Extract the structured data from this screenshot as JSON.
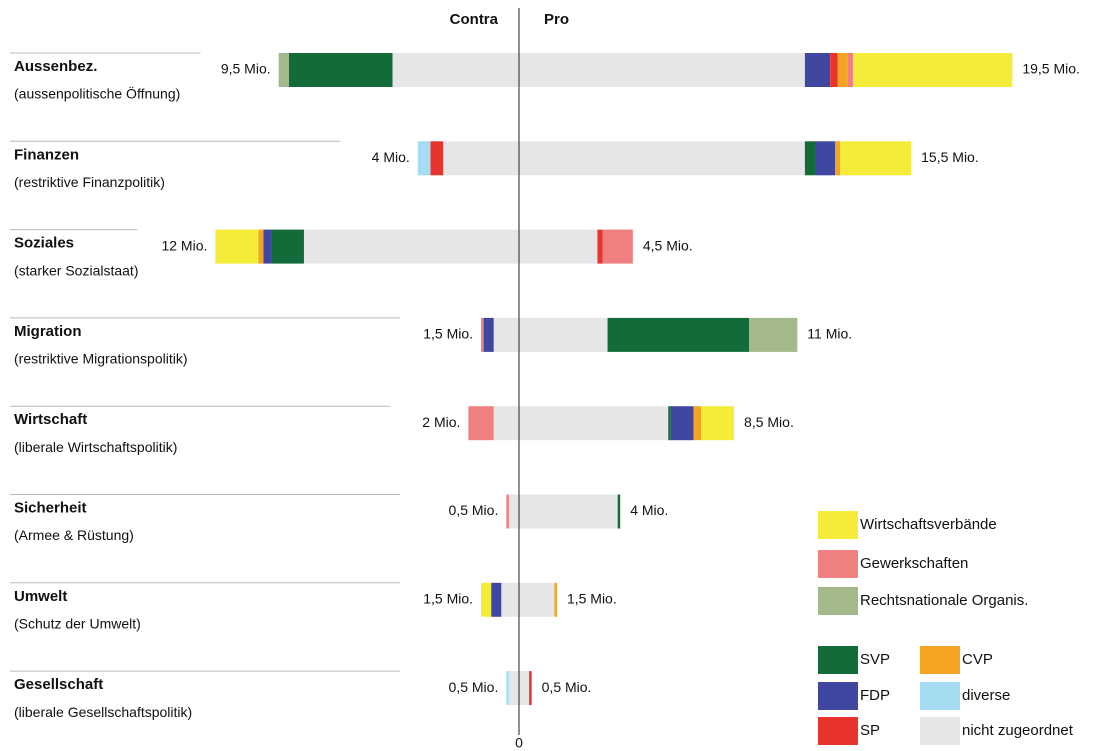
{
  "chart_data": {
    "type": "diverging-bar",
    "header_left": "Contra",
    "header_right": "Pro",
    "categories": [
      "Aussenbez.",
      "Finanzen",
      "Soziales",
      "Migration",
      "Wirtschaft",
      "Sicherheit",
      "Umwelt",
      "Gesellschaft"
    ],
    "subtitles": [
      "(aussenpolitische Öffnung)",
      "(restriktive Finanzpolitik)",
      "(starker Sozialstaat)",
      "(restriktive Migrationspolitik)",
      "(liberale Wirtschaftspolitik)",
      "(Armee & Rüstung)",
      "(Schutz der Umwelt)",
      "(liberale Gesellschaftspolitik)"
    ],
    "series": [
      {
        "name": "nicht zugeordnet",
        "color": "#e6e6e6",
        "contra": [
          5.0,
          3.0,
          8.5,
          1.0,
          1.0,
          0.4,
          0.7,
          0.4
        ],
        "pro": [
          11.3,
          11.3,
          3.1,
          3.5,
          5.9,
          3.9,
          1.4,
          0.4
        ]
      },
      {
        "name": "SVP",
        "color": "#146b3a",
        "contra": [
          4.1,
          0,
          1.3,
          0,
          0,
          0,
          0,
          0
        ],
        "pro": [
          0,
          0.4,
          0,
          5.6,
          0.1,
          0.1,
          0,
          0
        ]
      },
      {
        "name": "FDP",
        "color": "#3f47a0",
        "contra": [
          0,
          0,
          0.3,
          0.4,
          0,
          0,
          0.4,
          0
        ],
        "pro": [
          1.0,
          0.8,
          0,
          0,
          0.9,
          0,
          0,
          0
        ]
      },
      {
        "name": "SP",
        "color": "#e8342c",
        "contra": [
          0,
          0.5,
          0,
          0,
          0,
          0,
          0,
          0
        ],
        "pro": [
          0.3,
          0,
          0.2,
          0,
          0,
          0,
          0,
          0.1
        ]
      },
      {
        "name": "CVP",
        "color": "#f4a623",
        "contra": [
          0,
          0,
          0.2,
          0,
          0,
          0,
          0,
          0
        ],
        "pro": [
          0.4,
          0.2,
          0,
          0,
          0.3,
          0,
          0.1,
          0
        ]
      },
      {
        "name": "diverse",
        "color": "#a6dcf2",
        "contra": [
          0,
          0.5,
          0,
          0,
          0,
          0,
          0,
          0.1
        ],
        "pro": [
          0,
          0,
          0,
          0,
          0,
          0,
          0,
          0
        ]
      },
      {
        "name": "Rechtsnationale Organis.",
        "color": "#a4b98a",
        "contra": [
          0.4,
          0,
          0,
          0,
          0,
          0,
          0,
          0
        ],
        "pro": [
          0,
          0,
          0,
          1.9,
          0,
          0,
          0,
          0
        ]
      },
      {
        "name": "Gewerkschaften",
        "color": "#f08080",
        "contra": [
          0,
          0,
          0,
          0.1,
          1.0,
          0.1,
          0,
          0
        ],
        "pro": [
          0.2,
          0,
          1.2,
          0,
          0,
          0,
          0,
          0
        ]
      },
      {
        "name": "Wirtschaftsverbände",
        "color": "#f5ec3a",
        "contra": [
          0,
          0,
          1.7,
          0,
          0,
          0,
          0.4,
          0
        ],
        "pro": [
          6.3,
          2.8,
          0,
          0,
          1.3,
          0,
          0,
          0
        ]
      }
    ],
    "contra_totals": [
      9.5,
      4,
      12,
      1.5,
      2,
      0.5,
      1.5,
      0.5
    ],
    "contra_total_labels": [
      "9,5 Mio.",
      "4 Mio.",
      "12 Mio.",
      "1,5 Mio.",
      "2 Mio.",
      "0,5 Mio.",
      "1,5 Mio.",
      "0,5 Mio."
    ],
    "pro_totals": [
      19.5,
      15.5,
      4.5,
      11,
      8.5,
      4,
      1.5,
      0.5
    ],
    "pro_total_labels": [
      "19,5 Mio.",
      "15,5 Mio.",
      "4,5 Mio.",
      "11 Mio.",
      "8,5 Mio.",
      "4 Mio.",
      "1,5 Mio.",
      "0,5 Mio."
    ],
    "xlim": [
      -20,
      20
    ],
    "xticks": [
      0
    ]
  }
}
